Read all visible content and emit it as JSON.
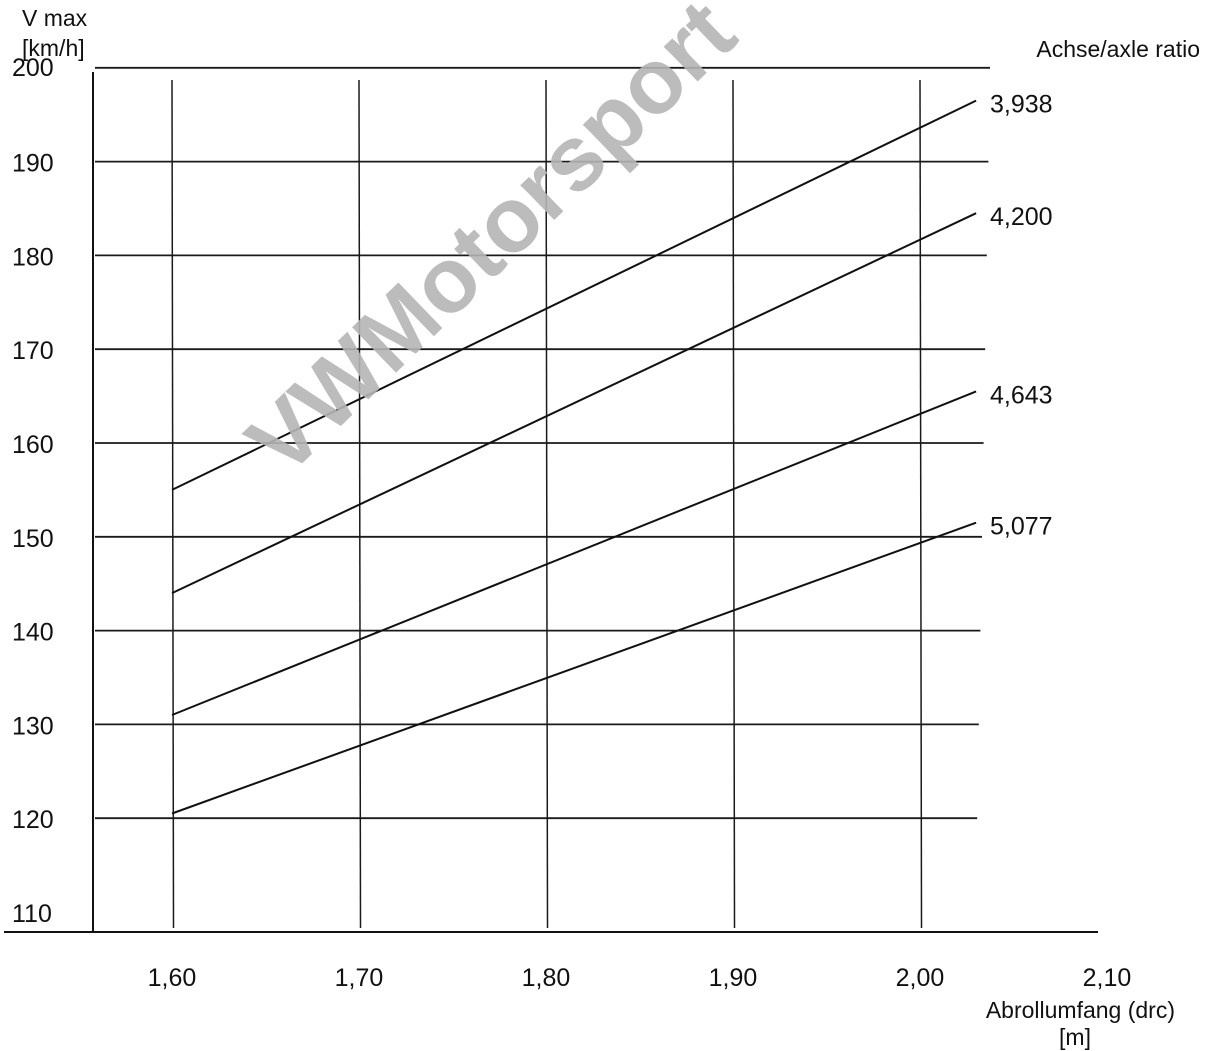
{
  "watermark": "VWMotorsport",
  "chart_data": {
    "type": "line",
    "ylabel_line1": "V max",
    "ylabel_line2": "[km/h]",
    "xlabel_line1": "Abrollumfang (drc)",
    "xlabel_line2": "[m]",
    "legend_title": "Achse/axle ratio",
    "xlim": [
      1.55,
      2.1
    ],
    "ylim": [
      110,
      200
    ],
    "x_ticks": [
      1.6,
      1.7,
      1.8,
      1.9,
      2.0,
      2.1
    ],
    "x_tick_labels": [
      "1,60",
      "1,70",
      "1,80",
      "1,90",
      "2,00",
      "2,10"
    ],
    "y_ticks": [
      110,
      120,
      130,
      140,
      150,
      160,
      170,
      180,
      190,
      200
    ],
    "y_tick_labels": [
      "110",
      "120",
      "130",
      "140",
      "150",
      "160",
      "170",
      "180",
      "190",
      "200"
    ],
    "grid": true,
    "series": [
      {
        "name": "3,938",
        "x": [
          1.6,
          2.03
        ],
        "y": [
          155.0,
          196.5
        ]
      },
      {
        "name": "4,200",
        "x": [
          1.6,
          2.03
        ],
        "y": [
          144.0,
          184.5
        ]
      },
      {
        "name": "4,643",
        "x": [
          1.6,
          2.03
        ],
        "y": [
          131.0,
          165.5
        ]
      },
      {
        "name": "5,077",
        "x": [
          1.6,
          2.03
        ],
        "y": [
          120.5,
          151.5
        ]
      }
    ]
  }
}
